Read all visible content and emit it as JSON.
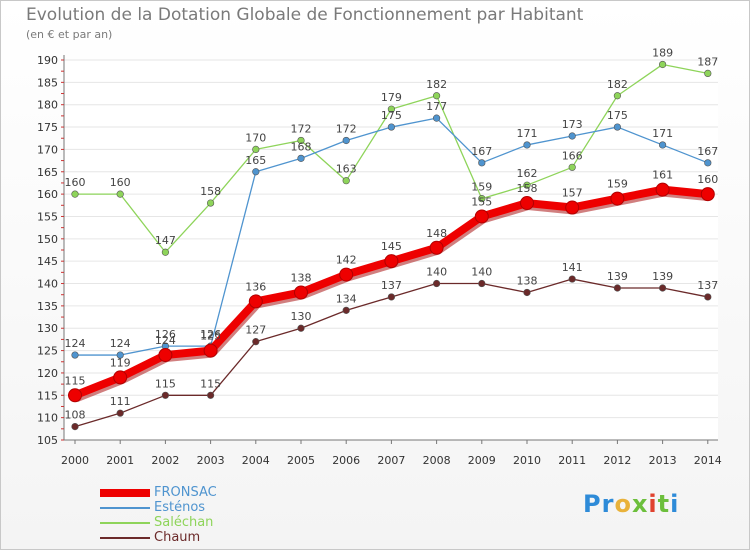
{
  "title": "Evolution de la Dotation Globale de Fonctionnement par Habitant",
  "subtitle": "(en € et par an)",
  "logo": "Proxiti",
  "chart_data": {
    "type": "line",
    "title": "Evolution de la Dotation Globale de Fonctionnement par Habitant",
    "ylabel": "(en € et par an)",
    "xlabel": "",
    "ylim": [
      105,
      190
    ],
    "yticks": [
      105,
      110,
      115,
      120,
      125,
      130,
      135,
      140,
      145,
      150,
      155,
      160,
      165,
      170,
      175,
      180,
      185,
      190
    ],
    "categories": [
      "2000",
      "2001",
      "2002",
      "2003",
      "2004",
      "2005",
      "2006",
      "2007",
      "2008",
      "2009",
      "2010",
      "2011",
      "2012",
      "2013",
      "2014"
    ],
    "series": [
      {
        "name": "Saléchan",
        "color": "#8ed45a",
        "values": [
          160,
          160,
          147,
          158,
          170,
          172,
          163,
          179,
          182,
          159,
          162,
          166,
          182,
          189,
          187
        ]
      },
      {
        "name": "Esténos",
        "color": "#4f94cf",
        "values": [
          124,
          124,
          126,
          126,
          165,
          168,
          172,
          175,
          177,
          167,
          171,
          173,
          175,
          171,
          167
        ]
      },
      {
        "name": "Chaum",
        "color": "#6b2a2a",
        "values": [
          108,
          111,
          115,
          115,
          127,
          130,
          134,
          137,
          140,
          140,
          138,
          141,
          139,
          139,
          137
        ]
      },
      {
        "name": "FRONSAC",
        "color": "#ee0000",
        "values": [
          115,
          119,
          124,
          125,
          136,
          138,
          142,
          145,
          148,
          155,
          158,
          157,
          159,
          161,
          160
        ]
      }
    ],
    "legend": [
      "FRONSAC",
      "Esténos",
      "Saléchan",
      "Chaum"
    ],
    "legend_position": "bottom-left"
  }
}
